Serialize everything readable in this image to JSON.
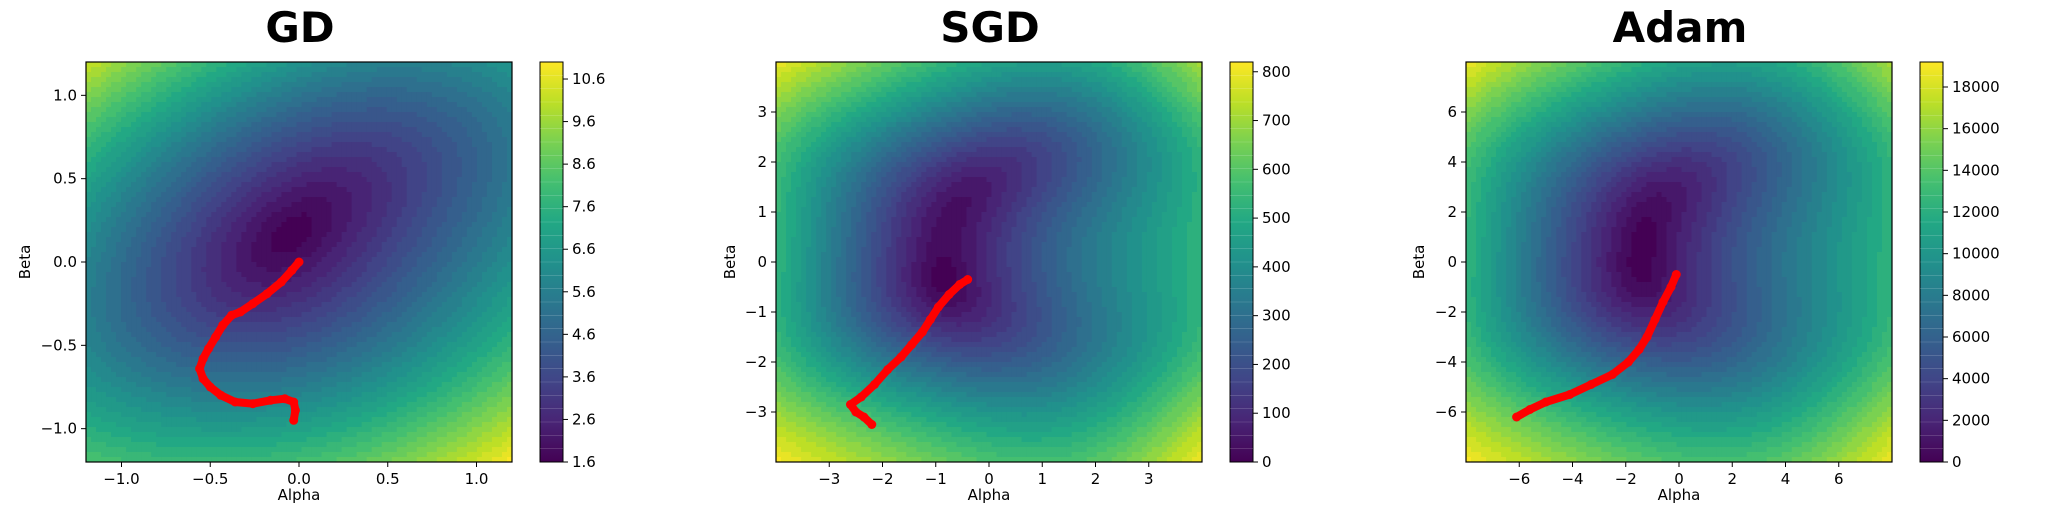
{
  "chart_data": [
    {
      "type": "contour",
      "title": "GD",
      "xlabel": "Alpha",
      "ylabel": "Beta",
      "xlim": [
        -1.2,
        1.2
      ],
      "ylim": [
        -1.2,
        1.2
      ],
      "xticks": [
        -1.0,
        -0.5,
        0.0,
        0.5,
        1.0
      ],
      "xtick_labels": [
        "−1.0",
        "−0.5",
        "0.0",
        "0.5",
        "1.0"
      ],
      "yticks": [
        -1.0,
        -0.5,
        0.0,
        0.5,
        1.0
      ],
      "ytick_labels": [
        "−1.0",
        "−0.5",
        "0.0",
        "0.5",
        "1.0"
      ],
      "colorbar": {
        "min": 1.6,
        "max": 11.0,
        "ticks": [
          1.6,
          2.6,
          3.6,
          4.6,
          5.6,
          6.6,
          7.6,
          8.6,
          9.6,
          10.6
        ],
        "tick_labels": [
          "1.6",
          "2.6",
          "3.6",
          "4.6",
          "5.6",
          "6.6",
          "7.6",
          "8.6",
          "9.6",
          "10.6"
        ]
      },
      "trajectory": {
        "color": "#ff0000",
        "points": [
          [
            0.0,
            0.0
          ],
          [
            -0.04,
            -0.05
          ],
          [
            -0.1,
            -0.12
          ],
          [
            -0.18,
            -0.19
          ],
          [
            -0.26,
            -0.25
          ],
          [
            -0.33,
            -0.3
          ],
          [
            -0.38,
            -0.32
          ],
          [
            -0.43,
            -0.38
          ],
          [
            -0.47,
            -0.45
          ],
          [
            -0.51,
            -0.52
          ],
          [
            -0.54,
            -0.58
          ],
          [
            -0.56,
            -0.64
          ],
          [
            -0.54,
            -0.7
          ],
          [
            -0.5,
            -0.75
          ],
          [
            -0.44,
            -0.8
          ],
          [
            -0.36,
            -0.84
          ],
          [
            -0.26,
            -0.85
          ],
          [
            -0.16,
            -0.83
          ],
          [
            -0.08,
            -0.82
          ],
          [
            -0.03,
            -0.84
          ],
          [
            -0.02,
            -0.89
          ],
          [
            -0.03,
            -0.95
          ]
        ]
      }
    },
    {
      "type": "contour",
      "title": "SGD",
      "xlabel": "Alpha",
      "ylabel": "Beta",
      "xlim": [
        -4.0,
        4.0
      ],
      "ylim": [
        -4.0,
        4.0
      ],
      "xticks": [
        -3,
        -2,
        -1,
        0,
        1,
        2,
        3
      ],
      "xtick_labels": [
        "−3",
        "−2",
        "−1",
        "0",
        "1",
        "2",
        "3"
      ],
      "yticks": [
        -3,
        -2,
        -1,
        0,
        1,
        2,
        3
      ],
      "ytick_labels": [
        "−3",
        "−2",
        "−1",
        "0",
        "1",
        "2",
        "3"
      ],
      "colorbar": {
        "min": 0,
        "max": 820,
        "ticks": [
          0,
          100,
          200,
          300,
          400,
          500,
          600,
          700,
          800
        ],
        "tick_labels": [
          "0",
          "100",
          "200",
          "300",
          "400",
          "500",
          "600",
          "700",
          "800"
        ]
      },
      "trajectory": {
        "color": "#ff0000",
        "points": [
          [
            -0.4,
            -0.35
          ],
          [
            -0.55,
            -0.45
          ],
          [
            -0.75,
            -0.65
          ],
          [
            -0.95,
            -0.9
          ],
          [
            -1.1,
            -1.15
          ],
          [
            -1.25,
            -1.4
          ],
          [
            -1.45,
            -1.65
          ],
          [
            -1.65,
            -1.9
          ],
          [
            -1.9,
            -2.15
          ],
          [
            -2.15,
            -2.45
          ],
          [
            -2.4,
            -2.7
          ],
          [
            -2.6,
            -2.85
          ],
          [
            -2.5,
            -3.0
          ],
          [
            -2.35,
            -3.1
          ],
          [
            -2.2,
            -3.25
          ]
        ]
      }
    },
    {
      "type": "contour",
      "title": "Adam",
      "xlabel": "Alpha",
      "ylabel": "Beta",
      "xlim": [
        -8.0,
        8.0
      ],
      "ylim": [
        -8.0,
        8.0
      ],
      "xticks": [
        -6,
        -4,
        -2,
        0,
        2,
        4,
        6
      ],
      "xtick_labels": [
        "−6",
        "−4",
        "−2",
        "0",
        "2",
        "4",
        "6"
      ],
      "yticks": [
        -6,
        -4,
        -2,
        0,
        2,
        4,
        6
      ],
      "ytick_labels": [
        "−6",
        "−4",
        "−2",
        "0",
        "2",
        "4",
        "6"
      ],
      "colorbar": {
        "min": 0,
        "max": 19200,
        "ticks": [
          0,
          2000,
          4000,
          6000,
          8000,
          10000,
          12000,
          14000,
          16000,
          18000
        ],
        "tick_labels": [
          "0",
          "2000",
          "4000",
          "6000",
          "8000",
          "10000",
          "12000",
          "14000",
          "16000",
          "18000"
        ]
      },
      "trajectory": {
        "color": "#ff0000",
        "points": [
          [
            -0.1,
            -0.5
          ],
          [
            -0.3,
            -1.0
          ],
          [
            -0.6,
            -1.6
          ],
          [
            -0.9,
            -2.3
          ],
          [
            -1.2,
            -3.0
          ],
          [
            -1.5,
            -3.5
          ],
          [
            -1.9,
            -4.0
          ],
          [
            -2.5,
            -4.5
          ],
          [
            -3.3,
            -4.9
          ],
          [
            -4.1,
            -5.3
          ],
          [
            -5.0,
            -5.6
          ],
          [
            -5.6,
            -5.9
          ],
          [
            -6.1,
            -6.2
          ]
        ]
      }
    }
  ]
}
